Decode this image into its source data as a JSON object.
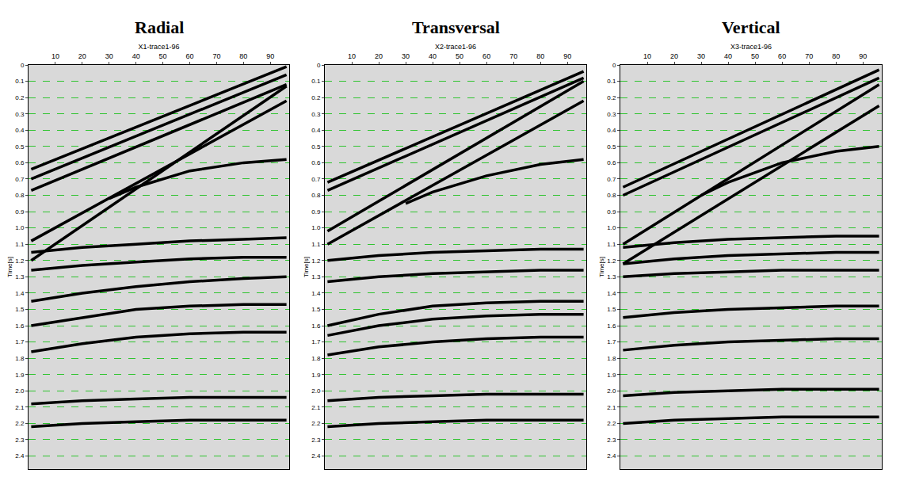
{
  "chart_data": [
    {
      "type": "line",
      "title": "Radial",
      "x_label": "X1-trace1-96",
      "y_label": "Time[s]",
      "xlim": [
        0,
        97
      ],
      "ylim": [
        2.48,
        0
      ],
      "xticks": [
        10,
        20,
        30,
        40,
        50,
        60,
        70,
        80,
        90
      ],
      "yticks": [
        0,
        0.1,
        0.2,
        0.3,
        0.4,
        0.5,
        0.6,
        0.7,
        0.8,
        0.9,
        {
          "value": 1,
          "label": "1.0"
        },
        1.1,
        1.2,
        1.3,
        1.4,
        1.5,
        1.6,
        1.7,
        1.8,
        1.9,
        {
          "value": 2,
          "label": "2.0"
        },
        2.1,
        2.2,
        2.3,
        2.4
      ],
      "grid": true,
      "color": "#000000",
      "series": [
        {
          "x": [
            1,
            96
          ],
          "values": [
            0.64,
            0.01
          ]
        },
        {
          "x": [
            1,
            96
          ],
          "values": [
            0.7,
            0.06
          ]
        },
        {
          "x": [
            1,
            96
          ],
          "values": [
            0.77,
            0.12
          ]
        },
        {
          "x": [
            1,
            96
          ],
          "values": [
            1.08,
            0.22
          ]
        },
        {
          "x": [
            1,
            96
          ],
          "values": [
            1.2,
            0.13
          ]
        },
        {
          "x": [
            30,
            40,
            60,
            80,
            96
          ],
          "values": [
            0.82,
            0.75,
            0.65,
            0.6,
            0.58
          ]
        },
        {
          "x": [
            1,
            20,
            40,
            60,
            80,
            96
          ],
          "values": [
            1.15,
            1.12,
            1.1,
            1.08,
            1.07,
            1.06
          ]
        },
        {
          "x": [
            1,
            20,
            40,
            60,
            80,
            96
          ],
          "values": [
            1.26,
            1.23,
            1.21,
            1.19,
            1.18,
            1.18
          ]
        },
        {
          "x": [
            1,
            20,
            40,
            60,
            80,
            96
          ],
          "values": [
            1.45,
            1.4,
            1.36,
            1.33,
            1.31,
            1.3
          ]
        },
        {
          "x": [
            1,
            20,
            40,
            60,
            80,
            96
          ],
          "values": [
            1.6,
            1.55,
            1.5,
            1.48,
            1.47,
            1.47
          ]
        },
        {
          "x": [
            1,
            20,
            40,
            60,
            80,
            96
          ],
          "values": [
            1.76,
            1.71,
            1.67,
            1.65,
            1.64,
            1.64
          ]
        },
        {
          "x": [
            1,
            20,
            40,
            60,
            80,
            96
          ],
          "values": [
            2.08,
            2.06,
            2.05,
            2.04,
            2.04,
            2.04
          ]
        },
        {
          "x": [
            1,
            20,
            40,
            60,
            80,
            96
          ],
          "values": [
            2.22,
            2.2,
            2.19,
            2.18,
            2.18,
            2.18
          ]
        }
      ]
    },
    {
      "type": "line",
      "title": "Transversal",
      "x_label": "X2-trace1-96",
      "y_label": "Time[s]",
      "xlim": [
        0,
        97
      ],
      "ylim": [
        2.48,
        0
      ],
      "xticks": [
        10,
        20,
        30,
        40,
        50,
        60,
        70,
        80,
        90
      ],
      "yticks": [
        0,
        0.1,
        0.2,
        0.3,
        0.4,
        0.5,
        0.6,
        0.7,
        0.8,
        0.9,
        {
          "value": 1,
          "label": "1.0"
        },
        1.1,
        1.2,
        1.3,
        1.4,
        1.5,
        1.6,
        1.7,
        1.8,
        1.9,
        {
          "value": 2,
          "label": "2.0"
        },
        2.1,
        2.2,
        2.3,
        2.4
      ],
      "grid": true,
      "color": "#000000",
      "series": [
        {
          "x": [
            1,
            96
          ],
          "values": [
            0.72,
            0.04
          ]
        },
        {
          "x": [
            1,
            96
          ],
          "values": [
            0.77,
            0.08
          ]
        },
        {
          "x": [
            1,
            96
          ],
          "values": [
            1.02,
            0.1
          ]
        },
        {
          "x": [
            1,
            96
          ],
          "values": [
            1.1,
            0.22
          ]
        },
        {
          "x": [
            30,
            40,
            60,
            80,
            96
          ],
          "values": [
            0.85,
            0.78,
            0.68,
            0.61,
            0.58
          ]
        },
        {
          "x": [
            1,
            20,
            40,
            60,
            80,
            96
          ],
          "values": [
            1.2,
            1.17,
            1.15,
            1.14,
            1.13,
            1.13
          ]
        },
        {
          "x": [
            1,
            20,
            40,
            60,
            80,
            96
          ],
          "values": [
            1.33,
            1.3,
            1.28,
            1.27,
            1.26,
            1.26
          ]
        },
        {
          "x": [
            1,
            20,
            40,
            60,
            80,
            96
          ],
          "values": [
            1.6,
            1.53,
            1.48,
            1.46,
            1.45,
            1.45
          ]
        },
        {
          "x": [
            1,
            20,
            40,
            60,
            80,
            96
          ],
          "values": [
            1.66,
            1.6,
            1.56,
            1.54,
            1.53,
            1.53
          ]
        },
        {
          "x": [
            1,
            20,
            40,
            60,
            80,
            96
          ],
          "values": [
            1.78,
            1.73,
            1.7,
            1.68,
            1.67,
            1.67
          ]
        },
        {
          "x": [
            1,
            20,
            40,
            60,
            80,
            96
          ],
          "values": [
            2.06,
            2.04,
            2.03,
            2.02,
            2.02,
            2.02
          ]
        },
        {
          "x": [
            1,
            20,
            40,
            60,
            80,
            96
          ],
          "values": [
            2.22,
            2.2,
            2.19,
            2.18,
            2.18,
            2.18
          ]
        }
      ]
    },
    {
      "type": "line",
      "title": "Vertical",
      "x_label": "X3-trace1-96",
      "y_label": "Time[s]",
      "xlim": [
        0,
        97
      ],
      "ylim": [
        2.48,
        0
      ],
      "xticks": [
        10,
        20,
        30,
        40,
        50,
        60,
        70,
        80,
        90
      ],
      "yticks": [
        0,
        0.1,
        0.2,
        0.3,
        0.4,
        0.5,
        0.6,
        0.7,
        0.8,
        0.9,
        {
          "value": 1,
          "label": "1.0"
        },
        1.1,
        1.2,
        1.3,
        1.4,
        1.5,
        1.6,
        1.7,
        1.8,
        1.9,
        {
          "value": 2,
          "label": "2.0"
        },
        2.1,
        2.2,
        2.3,
        2.4
      ],
      "grid": true,
      "color": "#000000",
      "series": [
        {
          "x": [
            1,
            96
          ],
          "values": [
            0.75,
            0.03
          ]
        },
        {
          "x": [
            1,
            96
          ],
          "values": [
            0.8,
            0.08
          ]
        },
        {
          "x": [
            1,
            96
          ],
          "values": [
            1.1,
            0.12
          ]
        },
        {
          "x": [
            1,
            96
          ],
          "values": [
            1.22,
            0.25
          ]
        },
        {
          "x": [
            30,
            40,
            60,
            80,
            96
          ],
          "values": [
            0.8,
            0.72,
            0.6,
            0.53,
            0.5
          ]
        },
        {
          "x": [
            1,
            20,
            40,
            60,
            80,
            96
          ],
          "values": [
            1.12,
            1.09,
            1.07,
            1.06,
            1.05,
            1.05
          ]
        },
        {
          "x": [
            1,
            20,
            40,
            60,
            80,
            96
          ],
          "values": [
            1.22,
            1.19,
            1.17,
            1.16,
            1.15,
            1.15
          ]
        },
        {
          "x": [
            1,
            20,
            40,
            60,
            80,
            96
          ],
          "values": [
            1.3,
            1.28,
            1.27,
            1.26,
            1.26,
            1.26
          ]
        },
        {
          "x": [
            1,
            20,
            40,
            60,
            80,
            96
          ],
          "values": [
            1.55,
            1.52,
            1.5,
            1.49,
            1.48,
            1.48
          ]
        },
        {
          "x": [
            1,
            20,
            40,
            60,
            80,
            96
          ],
          "values": [
            1.75,
            1.72,
            1.7,
            1.69,
            1.68,
            1.68
          ]
        },
        {
          "x": [
            1,
            20,
            40,
            60,
            80,
            96
          ],
          "values": [
            2.03,
            2.01,
            2.0,
            1.99,
            1.99,
            1.99
          ]
        },
        {
          "x": [
            1,
            20,
            40,
            60,
            80,
            96
          ],
          "values": [
            2.2,
            2.18,
            2.17,
            2.16,
            2.16,
            2.16
          ]
        }
      ]
    }
  ]
}
